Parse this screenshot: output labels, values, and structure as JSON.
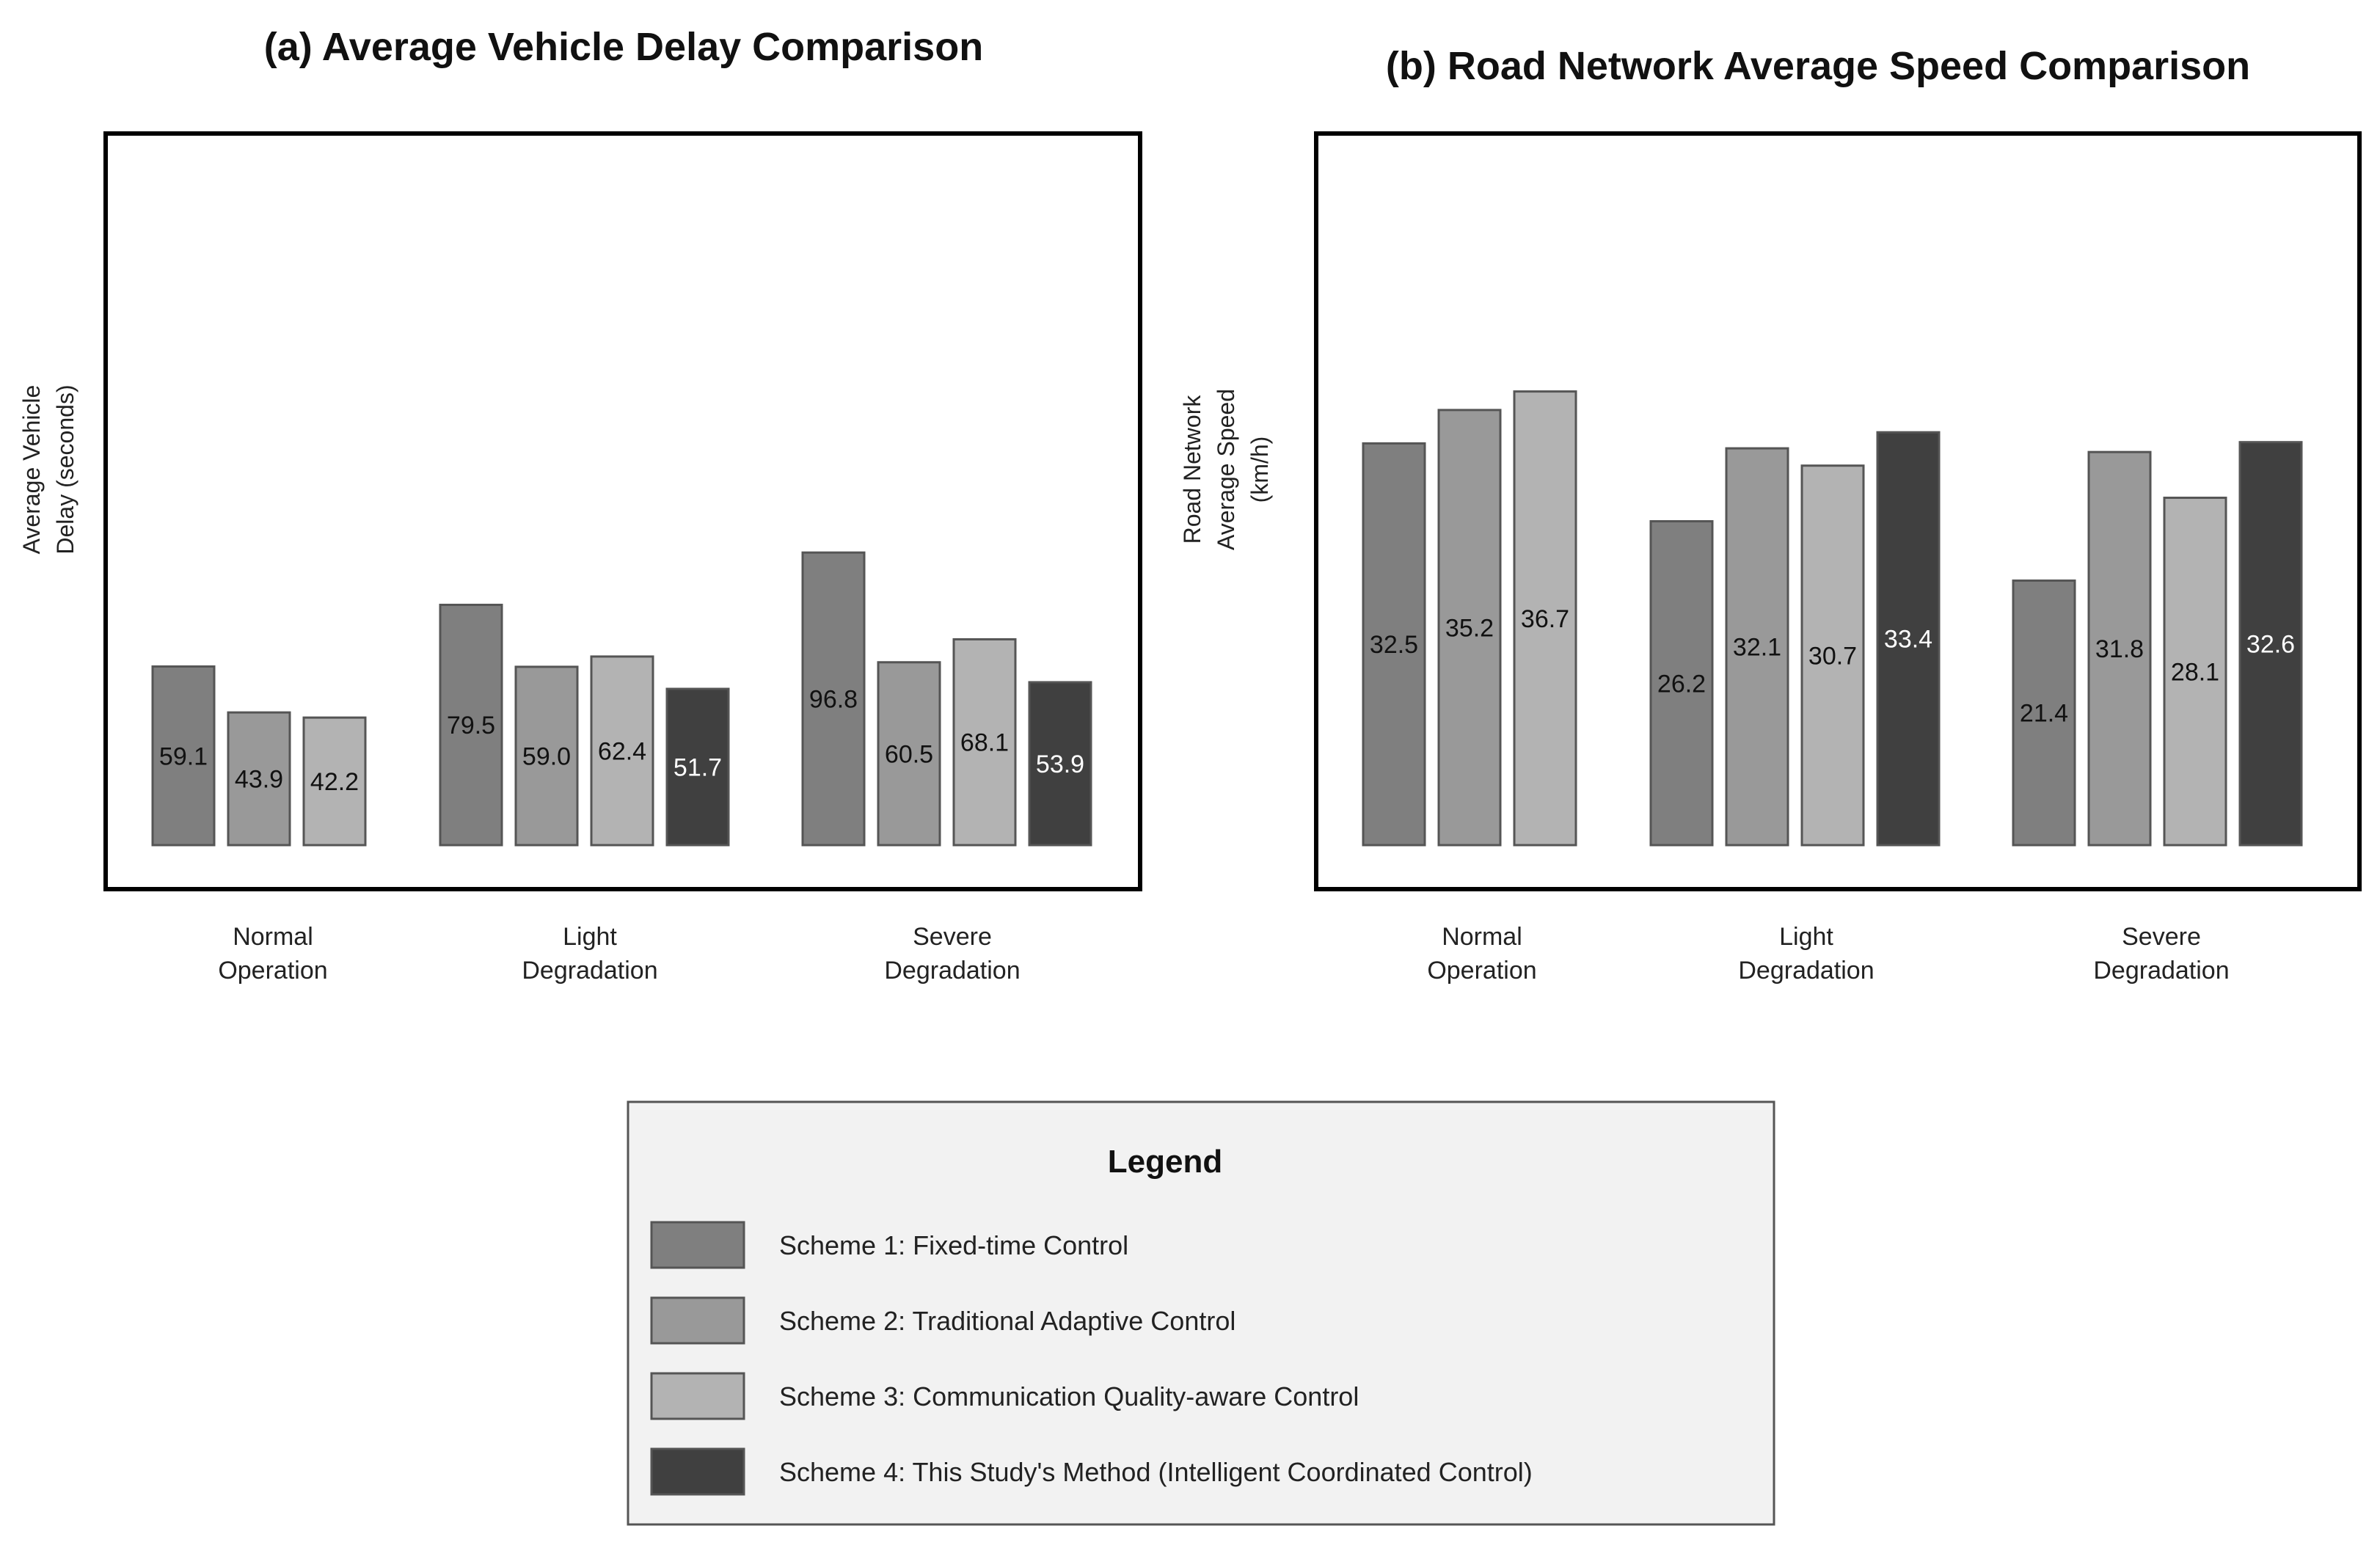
{
  "legend": {
    "title": "Legend",
    "items": [
      {
        "label": "Scheme 1: Fixed-time Control",
        "color": "#7f7f7f"
      },
      {
        "label": "Scheme 2: Traditional Adaptive Control",
        "color": "#999999"
      },
      {
        "label": "Scheme 3: Communication Quality-aware Control",
        "color": "#b3b3b3"
      },
      {
        "label": "Scheme 4: This Study's Method (Intelligent Coordinated Control)",
        "color": "#404040"
      }
    ]
  },
  "chart_data": [
    {
      "type": "bar",
      "title": "(a) Average Vehicle Delay Comparison",
      "ylabel_lines": [
        "Average Vehicle",
        "Delay (seconds)"
      ],
      "xlabel": "",
      "categories": [
        [
          "Normal",
          "Operation"
        ],
        [
          "Light",
          "Degradation"
        ],
        [
          "Severe",
          "Degradation"
        ]
      ],
      "series": [
        {
          "name": "Scheme 1",
          "values": [
            59.1,
            79.5,
            96.8
          ]
        },
        {
          "name": "Scheme 2",
          "values": [
            43.9,
            59.0,
            60.5
          ]
        },
        {
          "name": "Scheme 3",
          "values": [
            42.2,
            62.4,
            68.1
          ]
        },
        {
          "name": "Scheme 4",
          "values": [
            null,
            51.7,
            53.9
          ]
        }
      ],
      "ylim": [
        0,
        120
      ],
      "grid": false,
      "legend_position": "bottom-center"
    },
    {
      "type": "bar",
      "title": "(b) Road Network Average Speed Comparison",
      "ylabel_lines": [
        "Road Network",
        "Average Speed",
        "(km/h)"
      ],
      "xlabel": "",
      "categories": [
        [
          "Normal",
          "Operation"
        ],
        [
          "Light",
          "Degradation"
        ],
        [
          "Severe",
          "Degradation"
        ]
      ],
      "series": [
        {
          "name": "Scheme 1",
          "values": [
            32.5,
            26.2,
            21.4
          ]
        },
        {
          "name": "Scheme 2",
          "values": [
            35.2,
            32.1,
            31.8
          ]
        },
        {
          "name": "Scheme 3",
          "values": [
            36.7,
            30.7,
            28.1
          ]
        },
        {
          "name": "Scheme 4",
          "values": [
            null,
            33.4,
            32.6
          ]
        }
      ],
      "ylim": [
        0,
        45
      ],
      "grid": false,
      "legend_position": "bottom-center"
    }
  ]
}
